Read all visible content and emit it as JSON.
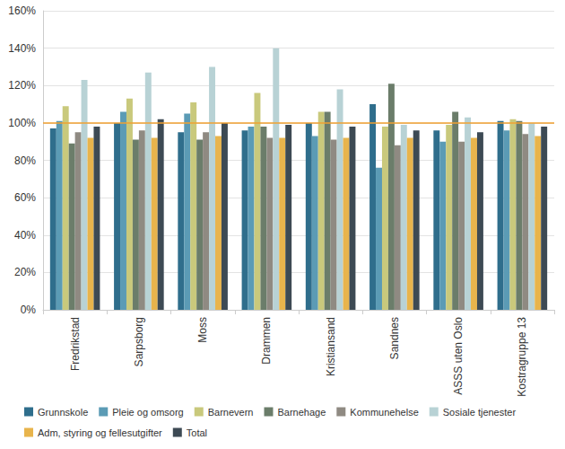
{
  "chart_data": {
    "type": "bar",
    "categories": [
      "Fredrikstad",
      "Sarpsborg",
      "Moss",
      "Drammen",
      "Kristiansand",
      "Sandnes",
      "ASSS uten Oslo",
      "Kostragruppe 13"
    ],
    "series": [
      {
        "name": "Grunnskole",
        "color": "#2f6e8c",
        "values": [
          97,
          100,
          95,
          96,
          100,
          110,
          96,
          101
        ]
      },
      {
        "name": "Pleie og omsorg",
        "color": "#5b9bb5",
        "values": [
          101,
          106,
          105,
          98,
          93,
          76,
          90,
          96
        ]
      },
      {
        "name": "Barnevern",
        "color": "#c9c97c",
        "values": [
          109,
          113,
          111,
          116,
          106,
          98,
          99,
          102
        ]
      },
      {
        "name": "Barnehage",
        "color": "#6b7d6a",
        "values": [
          89,
          91,
          91,
          98,
          106,
          121,
          106,
          101
        ]
      },
      {
        "name": "Kommunehelse",
        "color": "#8f8a82",
        "values": [
          95,
          96,
          95,
          92,
          91,
          88,
          90,
          94
        ]
      },
      {
        "name": "Sosiale tjenester",
        "color": "#b8d2d5",
        "values": [
          123,
          127,
          130,
          140,
          118,
          99,
          103,
          100
        ]
      },
      {
        "name": "Adm, styring og fellesutgifter",
        "color": "#e8b44c",
        "values": [
          92,
          92,
          93,
          92,
          92,
          92,
          92,
          93
        ]
      },
      {
        "name": "Total",
        "color": "#3d4a54",
        "values": [
          98,
          102,
          100,
          99,
          98,
          96,
          95,
          98
        ]
      }
    ],
    "reference_line": {
      "value": 100,
      "color": "#f0a030"
    },
    "ylim": [
      0,
      160
    ],
    "yticks": [
      {
        "value": 0,
        "label": "0%"
      },
      {
        "value": 20,
        "label": "20%"
      },
      {
        "value": 40,
        "label": "40%"
      },
      {
        "value": 60,
        "label": "60%"
      },
      {
        "value": 80,
        "label": "80%"
      },
      {
        "value": 100,
        "label": "100%"
      },
      {
        "value": 120,
        "label": "120%"
      },
      {
        "value": 140,
        "label": "140%"
      },
      {
        "value": 160,
        "label": "160%"
      }
    ],
    "grid": true,
    "legend": "bottom"
  }
}
